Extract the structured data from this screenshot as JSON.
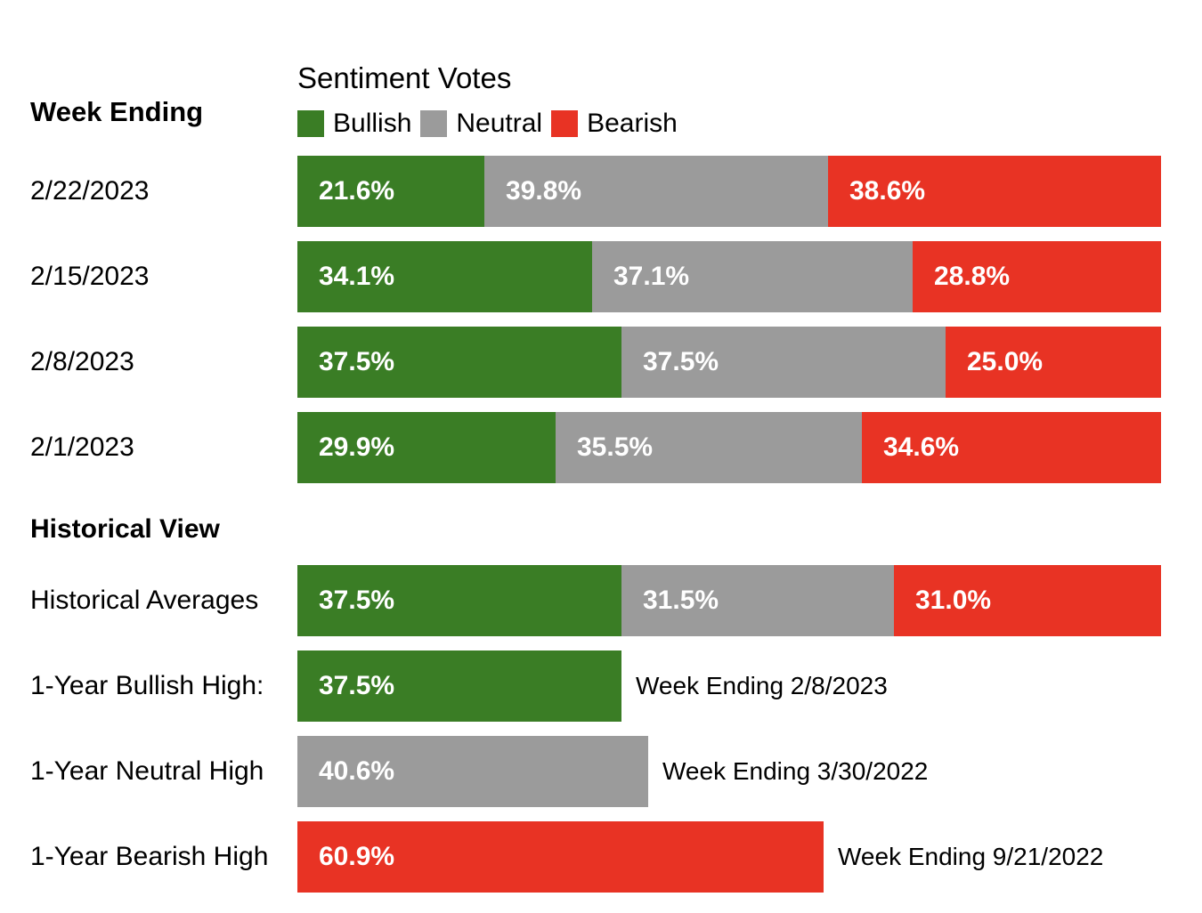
{
  "chart_data": {
    "type": "bar",
    "stacked": true,
    "orientation": "horizontal",
    "title": "Sentiment Votes",
    "row_header": "Week Ending",
    "section_header": "Historical View",
    "legend": [
      "Bullish",
      "Neutral",
      "Bearish"
    ],
    "colors": {
      "Bullish": "#3a7d25",
      "Neutral": "#9b9b9b",
      "Bearish": "#e83324"
    },
    "weeks": [
      {
        "label": "2/22/2023",
        "values": [
          21.6,
          39.8,
          38.6
        ],
        "texts": [
          "21.6%",
          "39.8%",
          "38.6%"
        ]
      },
      {
        "label": "2/15/2023",
        "values": [
          34.1,
          37.1,
          28.8
        ],
        "texts": [
          "34.1%",
          "37.1%",
          "28.8%"
        ]
      },
      {
        "label": "2/8/2023",
        "values": [
          37.5,
          37.5,
          25.0
        ],
        "texts": [
          "37.5%",
          "37.5%",
          "25.0%"
        ]
      },
      {
        "label": "2/1/2023",
        "values": [
          29.9,
          35.5,
          34.6
        ],
        "texts": [
          "29.9%",
          "35.5%",
          "34.6%"
        ]
      }
    ],
    "historical_average": {
      "label": "Historical Averages",
      "values": [
        37.5,
        31.5,
        31.0
      ],
      "texts": [
        "37.5%",
        "31.5%",
        "31.0%"
      ]
    },
    "highs": [
      {
        "label": "1-Year Bullish High:",
        "series": "Bullish",
        "value": 37.5,
        "text": "37.5%",
        "note": "Week Ending 2/8/2023"
      },
      {
        "label": "1-Year Neutral High",
        "series": "Neutral",
        "value": 40.6,
        "text": "40.6%",
        "note": "Week Ending 3/30/2022"
      },
      {
        "label": "1-Year Bearish High",
        "series": "Bearish",
        "value": 60.9,
        "text": "60.9%",
        "note": "Week Ending 9/21/2022"
      }
    ]
  }
}
